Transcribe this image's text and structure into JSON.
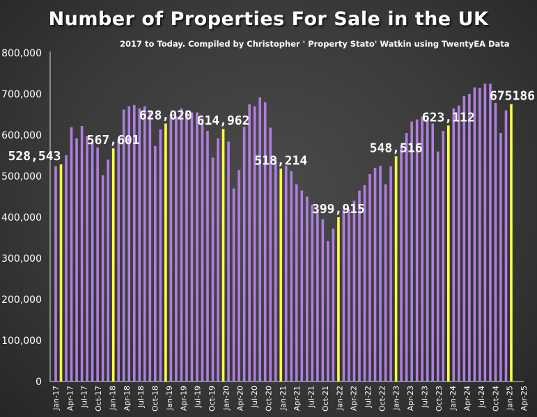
{
  "chart_data": {
    "type": "bar",
    "title": "Number of Properties For Sale in the UK",
    "subtitle": "2017 to Today. Compiled by Christopher ' Property Stato' Watkin using TwentyEA Data",
    "xlabel": "",
    "ylabel": "",
    "ylim": [
      0,
      800000
    ],
    "yticks": [
      "0",
      "100,000",
      "200,000",
      "300,000",
      "400,000",
      "500,000",
      "600,000",
      "700,000",
      "800,000"
    ],
    "grid": false,
    "legend": "none",
    "tick_labels": [
      "Jan-17",
      "Apr-17",
      "Jul-17",
      "Oct-17",
      "Jan-18",
      "Apr-18",
      "Jul-18",
      "Oct-18",
      "Jan-19",
      "Apr-19",
      "Jul-19",
      "Oct-19",
      "Jan-20",
      "Apr-20",
      "Jul-20",
      "Oct-20",
      "Jan-21",
      "Apr-21",
      "Jul-21",
      "Oct-21",
      "Jan-22",
      "Apr-22",
      "Jul-22",
      "Oct-22",
      "Jan-23",
      "Apr-23",
      "Jul-23",
      "Oct-23",
      "Jan-24",
      "Apr-24",
      "Jul-24",
      "Oct-24",
      "Jan-25",
      "Apr-25"
    ],
    "values": [
      524000,
      528543,
      551000,
      619000,
      592000,
      622000,
      598000,
      584000,
      570000,
      502000,
      540000,
      567601,
      590000,
      662000,
      670000,
      673000,
      665000,
      670000,
      658000,
      573000,
      614000,
      628020,
      650000,
      645000,
      665000,
      660000,
      655000,
      655000,
      640000,
      610000,
      545000,
      592000,
      614962,
      584000,
      470000,
      515000,
      620000,
      675000,
      670000,
      692000,
      680000,
      618000,
      545000,
      518214,
      525000,
      512000,
      480000,
      465000,
      450000,
      430000,
      420000,
      395000,
      342000,
      372000,
      399915,
      418000,
      420000,
      440000,
      465000,
      478000,
      505000,
      520000,
      525000,
      480000,
      524000,
      548516,
      575000,
      605000,
      633000,
      638000,
      645000,
      640000,
      628000,
      560000,
      610000,
      623112,
      665000,
      672000,
      695000,
      700000,
      716000,
      715000,
      725000,
      725000,
      678000,
      605000,
      660000,
      675186
    ],
    "bar_color": "#b07ee0",
    "highlight_color": "#ffff44",
    "highlights": [
      {
        "index": 1,
        "label": "528,543"
      },
      {
        "index": 11,
        "label": "567,601"
      },
      {
        "index": 21,
        "label": "628,020"
      },
      {
        "index": 32,
        "label": "614,962"
      },
      {
        "index": 43,
        "label": "518,214"
      },
      {
        "index": 54,
        "label": "399,915"
      },
      {
        "index": 65,
        "label": "548,516"
      },
      {
        "index": 75,
        "label": "623,112"
      },
      {
        "index": 87,
        "label": "675186"
      }
    ]
  }
}
